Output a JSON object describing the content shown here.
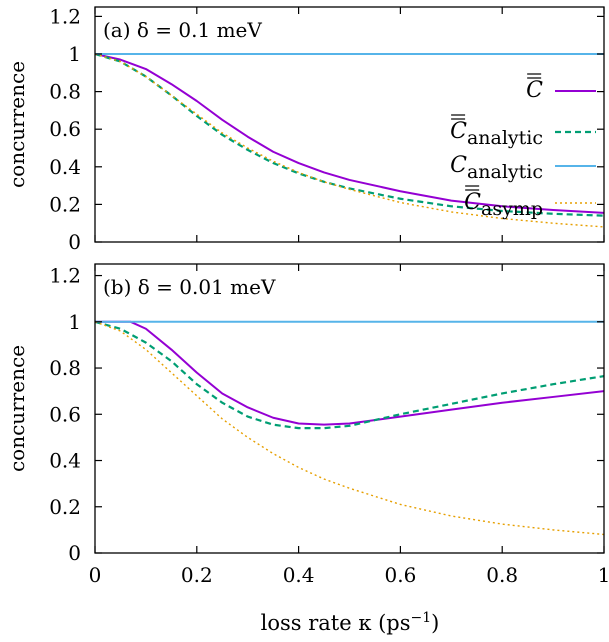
{
  "colors": {
    "C_bar": "#9400d3",
    "C_bar_analytic": "#009e73",
    "C_analytic": "#56b4e9",
    "C_asymp": "#e69f00",
    "axis": "#000000"
  },
  "figure": {
    "xlabel": "loss rate κ (ps",
    "xlabel_sup": "−1",
    "xlabel_close": ")"
  },
  "legend": {
    "items": [
      {
        "key": "C_bar",
        "label": "C",
        "sub": "",
        "bars": 2,
        "dash": "none"
      },
      {
        "key": "C_bar_analytic",
        "label": "C",
        "sub": "analytic",
        "bars": 2,
        "dash": "6,4"
      },
      {
        "key": "C_analytic",
        "label": "C",
        "sub": "analytic",
        "bars": 0,
        "dash": "none"
      },
      {
        "key": "C_asymp",
        "label": "C",
        "sub": "asymp",
        "bars": 2,
        "dash": "2,3"
      }
    ]
  },
  "chart_data": [
    {
      "type": "line",
      "title": "(a)  δ = 0.1 meV",
      "ylabel": "concurrence",
      "xlim": [
        0,
        1
      ],
      "ylim": [
        0,
        1.25
      ],
      "xticks": [
        "0",
        "0.2",
        "0.4",
        "0.6",
        "0.8",
        "1"
      ],
      "xtick_values": [
        0,
        0.2,
        0.4,
        0.6,
        0.8,
        1
      ],
      "yticks": [
        "0",
        "0.2",
        "0.4",
        "0.6",
        "0.8",
        "1",
        "1.2"
      ],
      "ytick_values": [
        0,
        0.2,
        0.4,
        0.6,
        0.8,
        1,
        1.2
      ],
      "show_xtick_labels": false,
      "show_legend": true,
      "series": [
        {
          "key": "C_bar",
          "x": [
            0,
            0.05,
            0.1,
            0.15,
            0.2,
            0.25,
            0.3,
            0.35,
            0.4,
            0.45,
            0.5,
            0.6,
            0.7,
            0.8,
            0.9,
            1.0
          ],
          "y": [
            1.0,
            0.97,
            0.92,
            0.84,
            0.75,
            0.65,
            0.56,
            0.48,
            0.42,
            0.37,
            0.33,
            0.27,
            0.22,
            0.19,
            0.17,
            0.155
          ]
        },
        {
          "key": "C_bar_analytic",
          "x": [
            0,
            0.05,
            0.1,
            0.15,
            0.2,
            0.25,
            0.3,
            0.35,
            0.4,
            0.45,
            0.5,
            0.6,
            0.7,
            0.8,
            0.9,
            1.0
          ],
          "y": [
            1.0,
            0.96,
            0.88,
            0.78,
            0.67,
            0.57,
            0.49,
            0.42,
            0.365,
            0.32,
            0.285,
            0.23,
            0.19,
            0.165,
            0.15,
            0.14
          ]
        },
        {
          "key": "C_analytic",
          "x": [
            0,
            1.0
          ],
          "y": [
            1.0,
            1.0
          ]
        },
        {
          "key": "C_asymp",
          "x": [
            0,
            0.05,
            0.1,
            0.15,
            0.2,
            0.25,
            0.3,
            0.35,
            0.4,
            0.45,
            0.5,
            0.6,
            0.7,
            0.8,
            0.9,
            1.0
          ],
          "y": [
            1.0,
            0.96,
            0.88,
            0.78,
            0.68,
            0.58,
            0.5,
            0.43,
            0.37,
            0.32,
            0.28,
            0.21,
            0.16,
            0.125,
            0.1,
            0.08
          ]
        }
      ]
    },
    {
      "type": "line",
      "title": "(b)  δ = 0.01 meV",
      "ylabel": "concurrence",
      "xlim": [
        0,
        1
      ],
      "ylim": [
        0,
        1.25
      ],
      "xticks": [
        "0",
        "0.2",
        "0.4",
        "0.6",
        "0.8",
        "1"
      ],
      "xtick_values": [
        0,
        0.2,
        0.4,
        0.6,
        0.8,
        1
      ],
      "yticks": [
        "0",
        "0.2",
        "0.4",
        "0.6",
        "0.8",
        "1",
        "1.2"
      ],
      "ytick_values": [
        0,
        0.2,
        0.4,
        0.6,
        0.8,
        1,
        1.2
      ],
      "show_xtick_labels": true,
      "show_legend": false,
      "series": [
        {
          "key": "C_bar",
          "x": [
            0,
            0.05,
            0.07,
            0.1,
            0.15,
            0.2,
            0.25,
            0.3,
            0.35,
            0.4,
            0.45,
            0.5,
            0.6,
            0.7,
            0.8,
            0.9,
            1.0
          ],
          "y": [
            1.0,
            1.0,
            1.0,
            0.97,
            0.88,
            0.78,
            0.69,
            0.63,
            0.585,
            0.56,
            0.555,
            0.56,
            0.59,
            0.62,
            0.65,
            0.675,
            0.7
          ]
        },
        {
          "key": "C_bar_analytic",
          "x": [
            0,
            0.05,
            0.1,
            0.15,
            0.2,
            0.25,
            0.3,
            0.35,
            0.4,
            0.45,
            0.5,
            0.6,
            0.7,
            0.8,
            0.9,
            1.0
          ],
          "y": [
            1.0,
            0.97,
            0.91,
            0.83,
            0.73,
            0.65,
            0.59,
            0.555,
            0.54,
            0.54,
            0.55,
            0.6,
            0.645,
            0.69,
            0.73,
            0.765
          ]
        },
        {
          "key": "C_analytic",
          "x": [
            0,
            1.0
          ],
          "y": [
            1.0,
            1.0
          ]
        },
        {
          "key": "C_asymp",
          "x": [
            0,
            0.05,
            0.1,
            0.15,
            0.2,
            0.25,
            0.3,
            0.35,
            0.4,
            0.45,
            0.5,
            0.6,
            0.7,
            0.8,
            0.9,
            1.0
          ],
          "y": [
            1.0,
            0.96,
            0.88,
            0.78,
            0.68,
            0.58,
            0.5,
            0.43,
            0.37,
            0.32,
            0.28,
            0.21,
            0.16,
            0.125,
            0.1,
            0.08
          ]
        }
      ]
    }
  ]
}
